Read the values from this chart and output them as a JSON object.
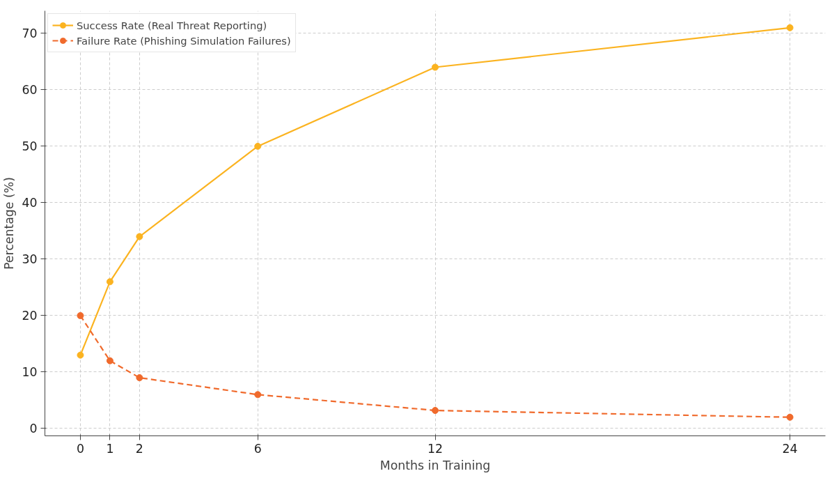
{
  "chart_data": {
    "type": "line",
    "xlabel": "Months in Training",
    "ylabel": "Percentage (%)",
    "x": [
      0,
      1,
      2,
      6,
      12,
      24
    ],
    "series": [
      {
        "name": "Success Rate (Real Threat Reporting)",
        "color": "#fbb320",
        "values": [
          13,
          26,
          34,
          50,
          64,
          71
        ],
        "line_style": "solid"
      },
      {
        "name": "Failure Rate (Phishing Simulation Failures)",
        "color": "#f06a2c",
        "values": [
          20,
          12,
          9,
          6,
          3.2,
          2
        ],
        "line_style": "dashed"
      }
    ],
    "xlim": [
      -1.2,
      25.2
    ],
    "ylim": [
      -1.3,
      74
    ],
    "xticks": [
      0,
      1,
      2,
      6,
      12,
      24
    ],
    "yticks": [
      0,
      10,
      20,
      30,
      40,
      50,
      60,
      70
    ],
    "grid": true,
    "legend": "top left",
    "marker": "circle"
  }
}
